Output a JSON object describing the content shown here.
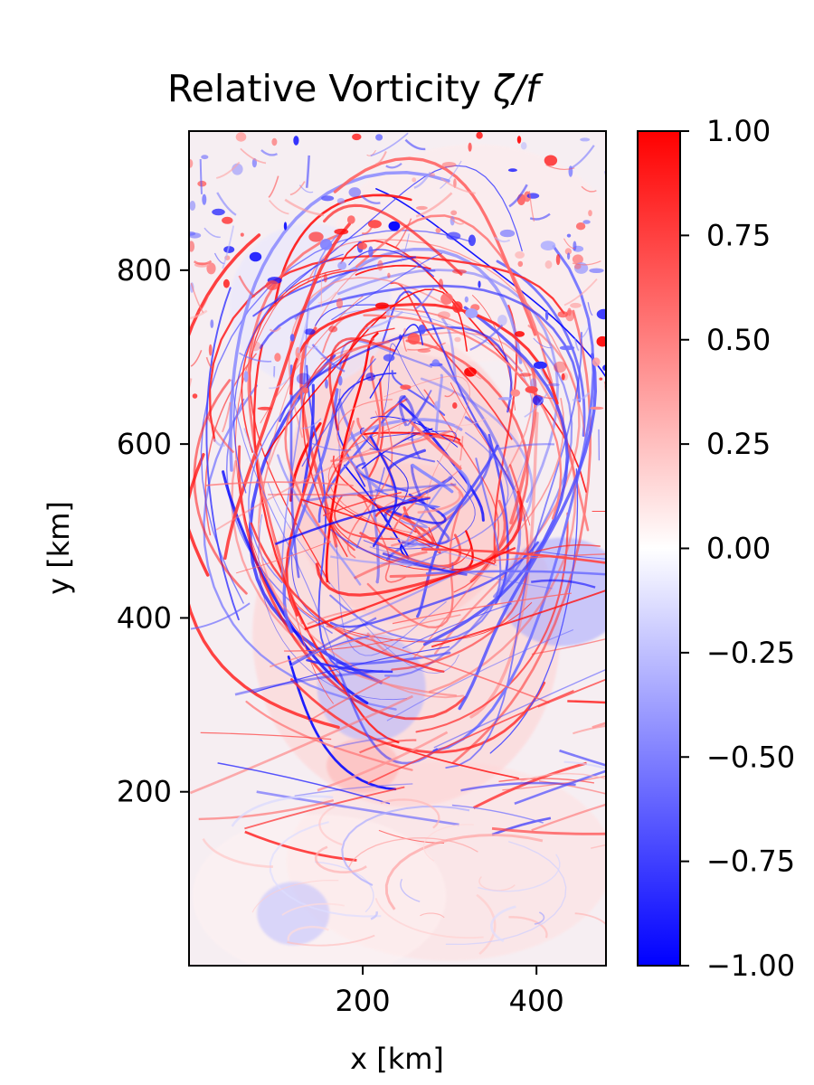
{
  "chart_data": [
    {
      "type": "heatmap",
      "title": "Relative Vorticity ζ/f",
      "title_parts": {
        "main": "Relative Vorticity ",
        "math": "ζ/f"
      },
      "xlabel": "x [km]",
      "ylabel": "y [km]",
      "xlim": [
        0,
        480
      ],
      "ylim": [
        0,
        960
      ],
      "xticks": [
        200,
        400
      ],
      "yticks": [
        200,
        400,
        600,
        800
      ],
      "grid": false,
      "colormap": "bwr",
      "colors": {
        "negative": "#0000ff",
        "zero": "#ffffff",
        "positive": "#ff0000"
      },
      "field_description": "turbulent vorticity field with filaments and eddies, large anticyclonic gyre near (250, 550), weak eddy near (100, 50)"
    },
    {
      "type": "colorbar",
      "range": [
        -1.0,
        1.0
      ],
      "ticks": [
        1.0,
        0.75,
        0.5,
        0.25,
        0.0,
        -0.25,
        -0.5,
        -0.75,
        -1.0
      ],
      "tick_labels": [
        "1.00",
        "0.75",
        "0.50",
        "0.25",
        "0.00",
        "−0.25",
        "−0.50",
        "−0.75",
        "−1.00"
      ]
    }
  ]
}
